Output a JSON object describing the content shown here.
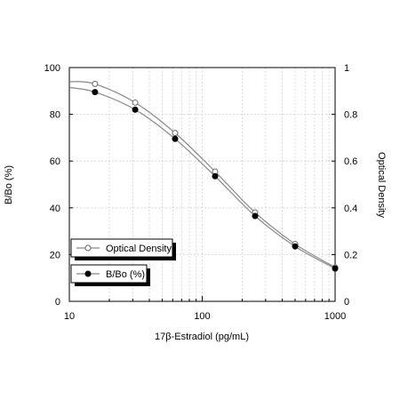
{
  "chart_data": {
    "type": "line",
    "title": "",
    "xlabel": "17β-Estradiol (pg/mL)",
    "ylabel_left": "B/Bo (%)",
    "ylabel_right": "Optical Density",
    "x_scale": "log",
    "xlim": [
      10,
      1000
    ],
    "ylim_left": [
      0,
      100
    ],
    "ylim_right": [
      0,
      1
    ],
    "x_tick_labels": [
      "10",
      "100",
      "1000"
    ],
    "y_left_tick_labels": [
      "0",
      "20",
      "40",
      "60",
      "80",
      "100"
    ],
    "y_right_tick_labels": [
      "0",
      "0.2",
      "0.4",
      "0.6",
      "0.8",
      "1"
    ],
    "grid": true,
    "legend_position": "lower-left",
    "series": [
      {
        "name": "Optical Density",
        "axis": "right",
        "marker": "open-circle",
        "color": "#888888",
        "x": [
          15.6,
          31.3,
          62.5,
          125,
          250,
          500,
          1000
        ],
        "y": [
          0.93,
          0.85,
          0.72,
          0.555,
          0.38,
          0.245,
          0.145
        ]
      },
      {
        "name": "B/Bo (%)",
        "axis": "left",
        "marker": "filled-circle",
        "color": "#000000",
        "x": [
          15.6,
          31.3,
          62.5,
          125,
          250,
          500,
          1000
        ],
        "y": [
          89.5,
          82,
          69.5,
          53.5,
          36.5,
          23.5,
          14
        ]
      }
    ],
    "curve_start": {
      "x": 10,
      "optical_density": 0.94,
      "bbo": 91.5
    }
  }
}
